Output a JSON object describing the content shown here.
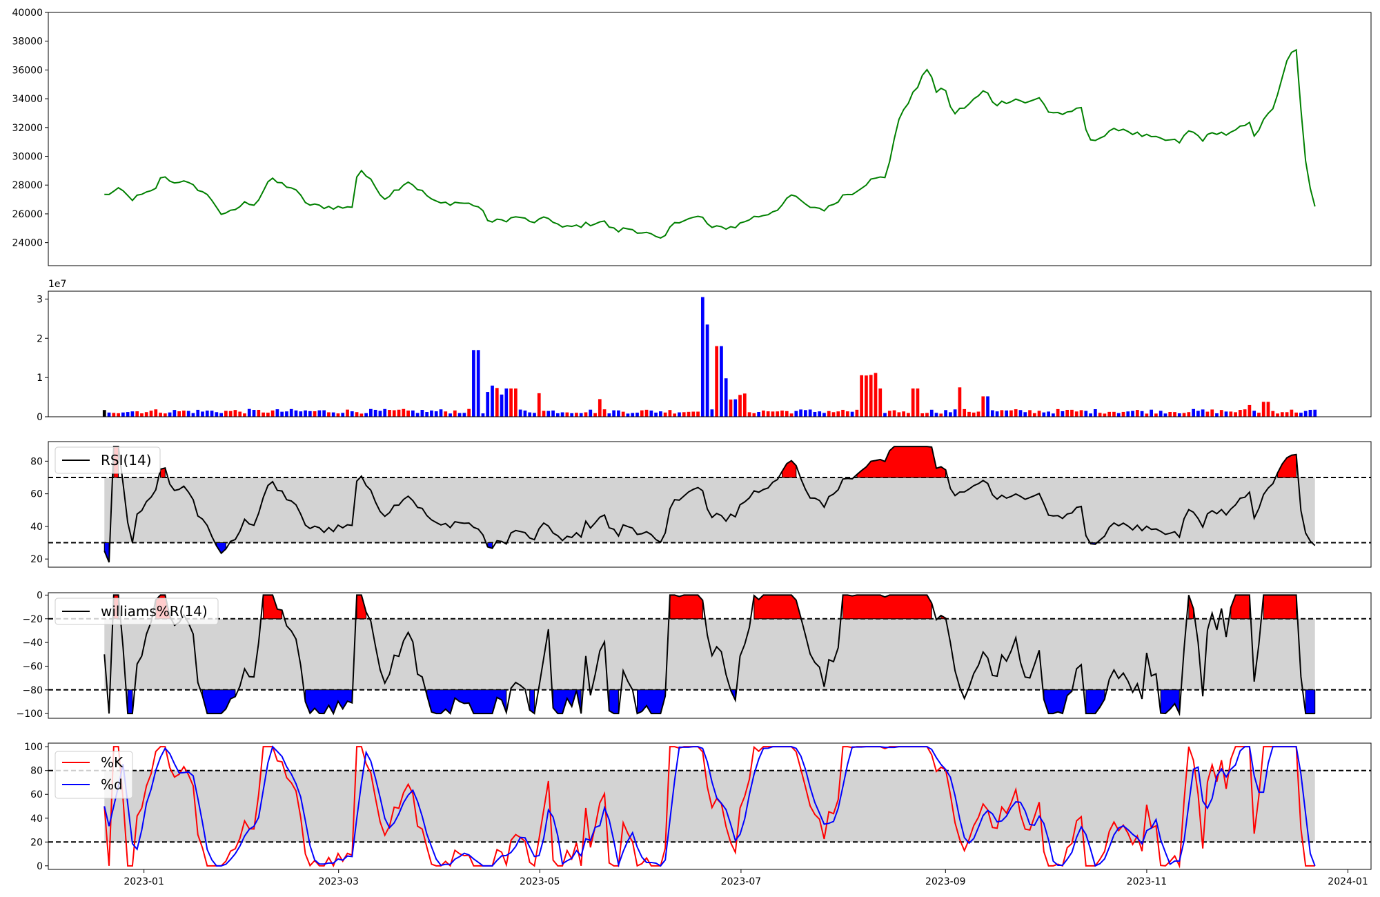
{
  "chart_data": {
    "type": "line",
    "x_axis": {
      "ticks": [
        "2023-01",
        "2023-03",
        "2023-05",
        "2023-07",
        "2023-09",
        "2023-11",
        "2024-01"
      ],
      "range": [
        "2022-12-03",
        "2024-01-08"
      ],
      "series_range": [
        "2022-12-20",
        "2023-12-22"
      ]
    },
    "colors": {
      "price": "#008000",
      "up": "#ff0000",
      "down": "#0000ff",
      "flat": "#000000",
      "band": "#d3d3d3",
      "k": "#ff0000",
      "d": "#0000ff",
      "line": "#000000"
    },
    "panels": {
      "price": {
        "type": "line",
        "ylim": [
          22400,
          40000
        ],
        "yticks": [
          24000,
          26000,
          28000,
          30000,
          32000,
          34000,
          36000,
          38000,
          40000
        ],
        "anchors": [
          [
            "2022-12-20",
            27300
          ],
          [
            "2022-12-25",
            27700
          ],
          [
            "2022-12-28",
            27000
          ],
          [
            "2023-01-04",
            27600
          ],
          [
            "2023-01-07",
            28800
          ],
          [
            "2023-01-09",
            28200
          ],
          [
            "2023-01-12",
            28300
          ],
          [
            "2023-01-18",
            27700
          ],
          [
            "2023-01-22",
            26900
          ],
          [
            "2023-01-25",
            25800
          ],
          [
            "2023-02-01",
            26800
          ],
          [
            "2023-02-04",
            26700
          ],
          [
            "2023-02-08",
            28400
          ],
          [
            "2023-02-15",
            27800
          ],
          [
            "2023-02-20",
            26600
          ],
          [
            "2023-02-25",
            26500
          ],
          [
            "2023-03-05",
            26400
          ],
          [
            "2023-03-07",
            29300
          ],
          [
            "2023-03-15",
            27100
          ],
          [
            "2023-03-22",
            28300
          ],
          [
            "2023-03-31",
            26700
          ],
          [
            "2023-04-06",
            26800
          ],
          [
            "2023-04-12",
            26600
          ],
          [
            "2023-04-16",
            25400
          ],
          [
            "2023-04-25",
            25800
          ],
          [
            "2023-04-28",
            25400
          ],
          [
            "2023-05-04",
            25700
          ],
          [
            "2023-05-08",
            25000
          ],
          [
            "2023-05-16",
            25300
          ],
          [
            "2023-05-20",
            25500
          ],
          [
            "2023-05-24",
            24800
          ],
          [
            "2023-05-28",
            25000
          ],
          [
            "2023-06-03",
            24600
          ],
          [
            "2023-06-07",
            24100
          ],
          [
            "2023-06-11",
            25500
          ],
          [
            "2023-06-19",
            25800
          ],
          [
            "2023-06-22",
            25000
          ],
          [
            "2023-06-29",
            25100
          ],
          [
            "2023-07-04",
            25700
          ],
          [
            "2023-07-09",
            26000
          ],
          [
            "2023-07-13",
            26500
          ],
          [
            "2023-07-17",
            27400
          ],
          [
            "2023-07-20",
            26600
          ],
          [
            "2023-07-27",
            26300
          ],
          [
            "2023-08-01",
            27300
          ],
          [
            "2023-08-04",
            27500
          ],
          [
            "2023-08-09",
            28300
          ],
          [
            "2023-08-14",
            28600
          ],
          [
            "2023-08-17",
            31800
          ],
          [
            "2023-08-19",
            33200
          ],
          [
            "2023-08-24",
            35000
          ],
          [
            "2023-08-27",
            36400
          ],
          [
            "2023-08-29",
            34400
          ],
          [
            "2023-09-01",
            34700
          ],
          [
            "2023-09-03",
            32900
          ],
          [
            "2023-09-08",
            33600
          ],
          [
            "2023-09-13",
            34600
          ],
          [
            "2023-09-16",
            33600
          ],
          [
            "2023-09-22",
            34000
          ],
          [
            "2023-09-26",
            33700
          ],
          [
            "2023-09-30",
            34100
          ],
          [
            "2023-10-02",
            33100
          ],
          [
            "2023-10-09",
            32900
          ],
          [
            "2023-10-12",
            33600
          ],
          [
            "2023-10-14",
            31200
          ],
          [
            "2023-10-18",
            31300
          ],
          [
            "2023-10-24",
            32000
          ],
          [
            "2023-10-28",
            31600
          ],
          [
            "2023-11-04",
            31200
          ],
          [
            "2023-11-11",
            31000
          ],
          [
            "2023-11-14",
            31800
          ],
          [
            "2023-11-18",
            31200
          ],
          [
            "2023-11-22",
            31700
          ],
          [
            "2023-11-26",
            31500
          ],
          [
            "2023-12-02",
            32300
          ],
          [
            "2023-12-04",
            31300
          ],
          [
            "2023-12-06",
            32600
          ],
          [
            "2023-12-09",
            33000
          ],
          [
            "2023-12-13",
            36300
          ],
          [
            "2023-12-16",
            37600
          ]
        ],
        "series_note": "green price line"
      },
      "volume": {
        "type": "bar",
        "exponent_label": "1e7",
        "ylim": [
          0,
          3.2
        ],
        "yticks": [
          0,
          1,
          2,
          3
        ]
      },
      "rsi": {
        "type": "area",
        "legend": "RSI(14)",
        "ylim": [
          15,
          92
        ],
        "yticks": [
          20,
          40,
          60,
          80
        ],
        "upper": 70,
        "lower": 30
      },
      "williams": {
        "type": "area",
        "legend": "williams%R(14)",
        "ylim": [
          -104,
          2
        ],
        "yticks": [
          -100,
          -80,
          -60,
          -40,
          -20,
          0
        ],
        "upper": -20,
        "lower": -80
      },
      "stoch": {
        "type": "line",
        "legend_k": "%K",
        "legend_d": "%d",
        "ylim": [
          -3,
          103
        ],
        "yticks": [
          0,
          20,
          40,
          60,
          80,
          100
        ],
        "upper": 80,
        "lower": 20
      }
    }
  }
}
